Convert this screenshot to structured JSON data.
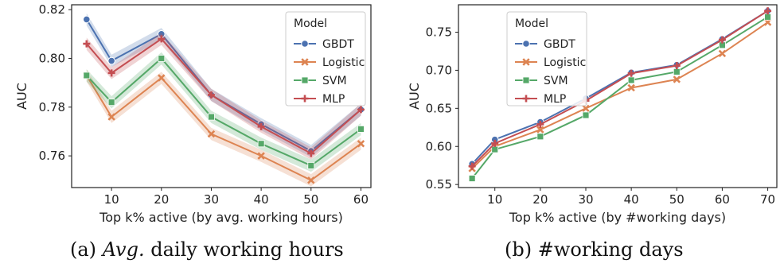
{
  "captions": {
    "a_label": "(a)",
    "a_italic": "Avg.",
    "a_rest": " daily working hours",
    "b_label": "(b)",
    "b_text": "#working days"
  },
  "colors": {
    "GBDT": "#4c72b0",
    "Logistic": "#dd8452",
    "SVM": "#55a868",
    "MLP": "#c44e52"
  },
  "chart_data": [
    {
      "type": "line",
      "xlabel": "Top k% active (by avg. working hours)",
      "ylabel": "AUC",
      "x": [
        5,
        10,
        20,
        30,
        40,
        50,
        60
      ],
      "xticks": [
        10,
        20,
        30,
        40,
        50,
        60
      ],
      "yticks": [
        0.76,
        0.78,
        0.8,
        0.82
      ],
      "ytick_labels": [
        "0.76",
        "0.78",
        "0.80",
        "0.82"
      ],
      "xlim": [
        2,
        62
      ],
      "ylim": [
        0.747,
        0.822
      ],
      "legend_title": "Model",
      "legend_position": "top-right",
      "series": [
        {
          "name": "GBDT",
          "marker": "circle",
          "values": [
            0.816,
            0.799,
            0.81,
            0.785,
            0.773,
            0.762,
            0.779
          ]
        },
        {
          "name": "Logistic",
          "marker": "x",
          "values": [
            0.793,
            0.776,
            0.792,
            0.769,
            0.76,
            0.75,
            0.765
          ]
        },
        {
          "name": "SVM",
          "marker": "square",
          "values": [
            0.793,
            0.782,
            0.8,
            0.776,
            0.765,
            0.756,
            0.771
          ]
        },
        {
          "name": "MLP",
          "marker": "plus",
          "values": [
            0.806,
            0.794,
            0.808,
            0.785,
            0.772,
            0.761,
            0.779
          ]
        }
      ]
    },
    {
      "type": "line",
      "xlabel": "Top k% active (by #working days)",
      "ylabel": "AUC",
      "x": [
        5,
        10,
        20,
        30,
        40,
        50,
        60,
        70
      ],
      "xticks": [
        10,
        20,
        30,
        40,
        50,
        60,
        70
      ],
      "yticks": [
        0.55,
        0.6,
        0.65,
        0.7,
        0.75
      ],
      "ytick_labels": [
        "0.55",
        "0.60",
        "0.65",
        "0.70",
        "0.75"
      ],
      "xlim": [
        2,
        72
      ],
      "ylim": [
        0.546,
        0.786
      ],
      "legend_title": "Model",
      "legend_position": "top-left",
      "series": [
        {
          "name": "GBDT",
          "marker": "circle",
          "values": [
            0.577,
            0.609,
            0.632,
            0.663,
            0.697,
            0.707,
            0.741,
            0.778
          ]
        },
        {
          "name": "Logistic",
          "marker": "x",
          "values": [
            0.571,
            0.6,
            0.622,
            0.65,
            0.677,
            0.688,
            0.722,
            0.763
          ]
        },
        {
          "name": "SVM",
          "marker": "square",
          "values": [
            0.558,
            0.596,
            0.613,
            0.641,
            0.687,
            0.698,
            0.733,
            0.77
          ]
        },
        {
          "name": "MLP",
          "marker": "plus",
          "values": [
            0.574,
            0.604,
            0.629,
            0.66,
            0.696,
            0.706,
            0.74,
            0.778
          ]
        }
      ]
    }
  ]
}
